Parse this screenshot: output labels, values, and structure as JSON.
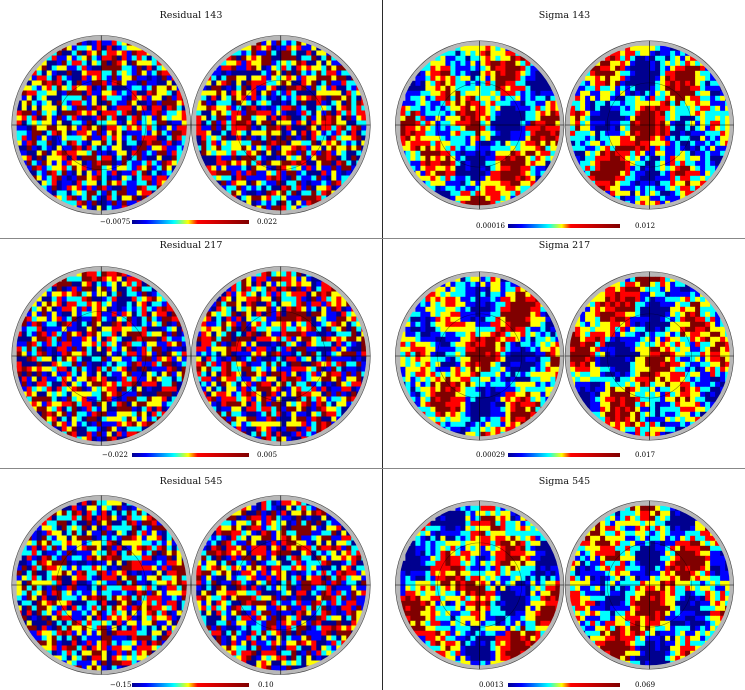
{
  "panels": [
    {
      "title": "Residual 143",
      "min_label": "−0.0075",
      "max_label": "0.022",
      "kind": "residual",
      "seed": 11
    },
    {
      "title": "Sigma 143",
      "min_label": "0.00016",
      "max_label": "0.012",
      "kind": "sigma",
      "seed": 23
    },
    {
      "title": "Residual 217",
      "min_label": "−0.022",
      "max_label": "0.005",
      "kind": "residual",
      "seed": 37
    },
    {
      "title": "Sigma 217",
      "min_label": "0.00029",
      "max_label": "0.017",
      "kind": "sigma",
      "seed": 41
    },
    {
      "title": "Residual 545",
      "min_label": "−0.15",
      "max_label": "0.10",
      "kind": "residual",
      "seed": 53
    },
    {
      "title": "Sigma 545",
      "min_label": "0.0013",
      "max_label": "0.069",
      "kind": "sigma",
      "seed": 67
    }
  ],
  "colors": {
    "jet": [
      "#00008f",
      "#0000ff",
      "#00ffff",
      "#ffff00",
      "#ff0000",
      "#800000"
    ],
    "disk_rim": "#b8b8b8",
    "graticule": "#000000"
  }
}
